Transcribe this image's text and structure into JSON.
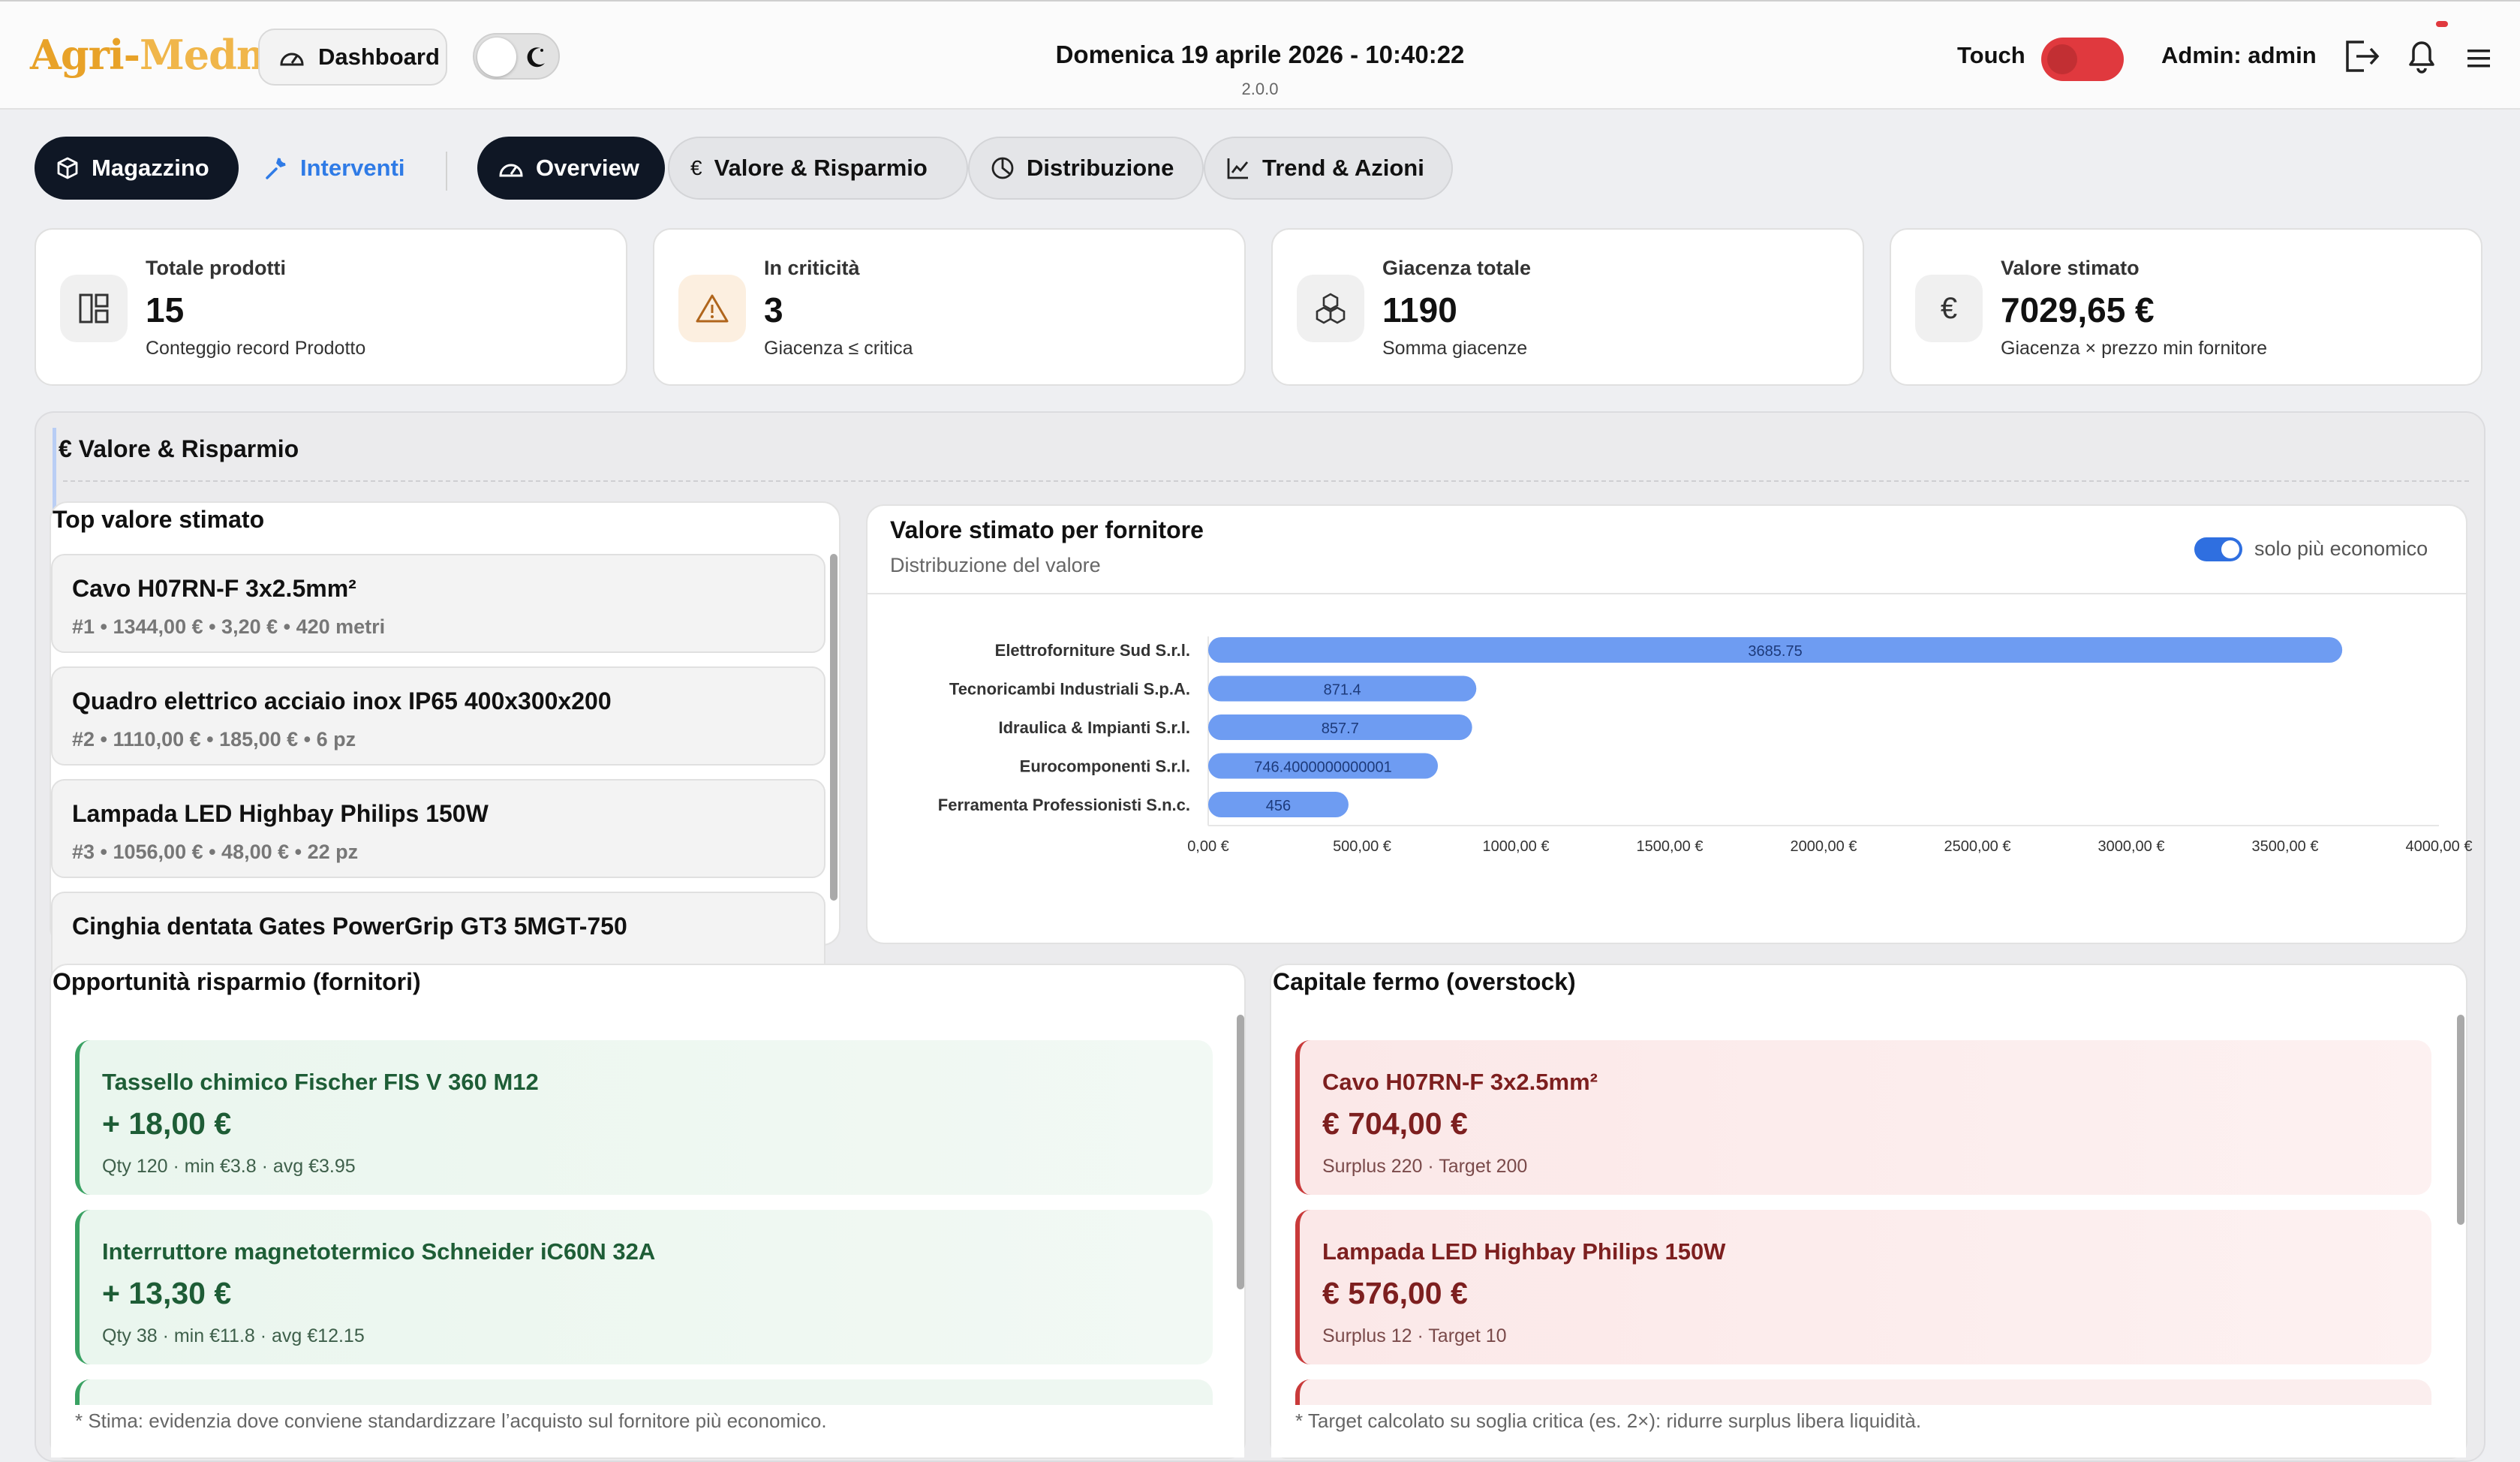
{
  "header": {
    "logo_part1": "Agri-",
    "logo_part2": "Medma",
    "dashboard_label": "Dashboard",
    "datetime": "Domenica 19 aprile 2026 - 10:40:22",
    "version": "2.0.0",
    "touch_label": "Touch",
    "admin_label": "Admin: admin"
  },
  "nav": {
    "magazzino": "Magazzino",
    "interventi": "Interventi",
    "tabs": [
      "Overview",
      "Valore & Risparmio",
      "Distribuzione",
      "Trend & Azioni"
    ]
  },
  "kpis": [
    {
      "label": "Totale prodotti",
      "value": "15",
      "sub": "Conteggio record Prodotto",
      "icon": "layout-icon"
    },
    {
      "label": "In criticità",
      "value": "3",
      "sub": "Giacenza ≤ critica",
      "icon": "warning-icon"
    },
    {
      "label": "Giacenza totale",
      "value": "1190",
      "sub": "Somma giacenze",
      "icon": "boxes-icon"
    },
    {
      "label": "Valore stimato",
      "value": "7029,65 €",
      "sub": "Giacenza × prezzo min fornitore",
      "icon": "euro-icon"
    }
  ],
  "section": {
    "title": "€ Valore & Risparmio"
  },
  "top_value": {
    "title": "Top valore stimato",
    "items": [
      {
        "name": "Cavo H07RN-F 3x2.5mm²",
        "meta": "#1 • 1344,00 € • 3,20 € • 420 metri"
      },
      {
        "name": "Quadro elettrico acciaio inox IP65 400x300x200",
        "meta": "#2 • 1110,00 € • 185,00 € • 6 pz"
      },
      {
        "name": "Lampada LED Highbay Philips 150W",
        "meta": "#3 • 1056,00 € • 48,00 € • 22 pz"
      },
      {
        "name": "Cinghia dentata Gates PowerGrip GT3 5MGT-750",
        "meta": ""
      }
    ]
  },
  "chart_panel": {
    "title": "Valore stimato per fornitore",
    "subtitle": "Distribuzione del valore",
    "toggle_label": "solo più economico"
  },
  "chart_data": {
    "type": "bar",
    "orientation": "horizontal",
    "categories": [
      "Elettroforniture Sud S.r.l.",
      "Tecnoricambi Industriali S.p.A.",
      "Idraulica & Impianti S.r.l.",
      "Eurocomponenti S.r.l.",
      "Ferramenta Professionisti S.n.c."
    ],
    "values": [
      3685.75,
      871.4,
      857.7,
      746.4000000000001,
      456
    ],
    "value_labels": [
      "3685.75",
      "871.4",
      "857.7",
      "746.4000000000001",
      "456"
    ],
    "xlim": [
      0,
      4000
    ],
    "ticks": [
      "0,00 €",
      "500,00 €",
      "1000,00 €",
      "1500,00 €",
      "2000,00 €",
      "2500,00 €",
      "3000,00 €",
      "3500,00 €",
      "4000,00 €"
    ],
    "bar_color": "#6e9cf2",
    "grid": false
  },
  "savings": {
    "title": "Opportunità risparmio (fornitori)",
    "items": [
      {
        "name": "Tassello chimico Fischer FIS V 360 M12",
        "value": "+ 18,00 €",
        "detail": "Qty 120 · min €3.8 · avg €3.95"
      },
      {
        "name": "Interruttore magnetotermico Schneider iC60N 32A",
        "value": "+ 13,30 €",
        "detail": "Qty 38 · min €11.8 · avg €12.15"
      }
    ],
    "note": "* Stima: evidenzia dove conviene standardizzare l’acquisto sul fornitore più economico."
  },
  "overstock": {
    "title": "Capitale fermo (overstock)",
    "items": [
      {
        "name": "Cavo H07RN-F 3x2.5mm²",
        "value": "€ 704,00 €",
        "detail": "Surplus 220 · Target 200"
      },
      {
        "name": "Lampada LED Highbay Philips 150W",
        "value": "€ 576,00 €",
        "detail": "Surplus 12 · Target 10"
      }
    ],
    "note": "* Target calcolato su soglia critica (es. 2×): ridurre surplus libera liquidità."
  },
  "colors": {
    "dark_pill": "#0f1725",
    "accent_blue": "#2f7be6",
    "touch_red": "#e0393e",
    "green_text": "#1e5d36",
    "red_text": "#7d1f1f"
  }
}
